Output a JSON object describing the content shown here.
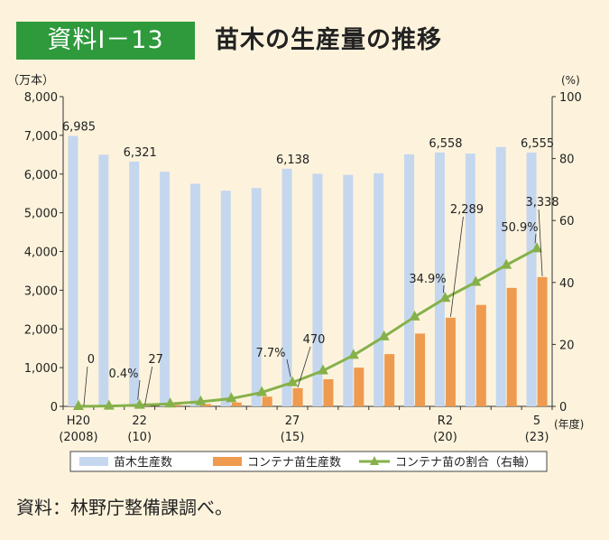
{
  "header": {
    "badge": "資料Ⅰ－13",
    "title": "苗木の生産量の推移"
  },
  "source_note": "資料：林野庁整備課調べ。",
  "colors": {
    "badge_bg": "#2e9a3c",
    "seedling_bar": "#c5d7ee",
    "container_bar": "#ee9a4f",
    "ratio_line": "#86b14a",
    "background": "#fdf3dc"
  },
  "chart_data": {
    "type": "bar",
    "left_axis_unit": "（万本）",
    "right_axis_unit": "(%)",
    "x_axis_unit": "(年度)",
    "left_ylim": [
      0,
      8000
    ],
    "right_ylim": [
      0,
      100
    ],
    "left_ticks": [
      "0",
      "1,000",
      "2,000",
      "3,000",
      "4,000",
      "5,000",
      "6,000",
      "7,000",
      "8,000"
    ],
    "right_ticks": [
      "0",
      "20",
      "40",
      "60",
      "80",
      "100"
    ],
    "x_labels": [
      {
        "index": 0,
        "line1": "H20",
        "line2": "(2008)"
      },
      {
        "index": 2,
        "line1": "22",
        "line2": "(10)"
      },
      {
        "index": 7,
        "line1": "27",
        "line2": "(15)"
      },
      {
        "index": 12,
        "line1": "R2",
        "line2": "(20)"
      },
      {
        "index": 15,
        "line1": "5",
        "line2": "(23)"
      }
    ],
    "series": [
      {
        "name": "苗木生産数",
        "type": "bar",
        "values": [
          6985,
          6500,
          6321,
          6060,
          5750,
          5570,
          5640,
          6138,
          6010,
          5980,
          6020,
          6510,
          6558,
          6530,
          6700,
          6555
        ]
      },
      {
        "name": "コンテナ苗生産数",
        "type": "bar",
        "values": [
          0,
          5,
          27,
          40,
          60,
          100,
          250,
          470,
          700,
          1000,
          1350,
          1880,
          2289,
          2620,
          3060,
          3338
        ]
      },
      {
        "name": "コンテナ苗の割合（右軸）",
        "type": "line",
        "values": [
          0,
          0.1,
          0.4,
          0.8,
          1.5,
          2.5,
          4.5,
          7.7,
          11.5,
          16.5,
          22.5,
          28.9,
          34.9,
          40.1,
          45.6,
          50.9
        ]
      }
    ],
    "annotations": {
      "seedling": [
        {
          "index": 0,
          "text": "6,985"
        },
        {
          "index": 2,
          "text": "6,321"
        },
        {
          "index": 7,
          "text": "6,138"
        },
        {
          "index": 12,
          "text": "6,558"
        },
        {
          "index": 15,
          "text": "6,555"
        }
      ],
      "container": [
        {
          "index": 0,
          "text": "0"
        },
        {
          "index": 2,
          "text": "27"
        },
        {
          "index": 7,
          "text": "470"
        },
        {
          "index": 12,
          "text": "2,289"
        },
        {
          "index": 15,
          "text": "3,338"
        }
      ],
      "ratio": [
        {
          "index": 2,
          "text": "0.4%"
        },
        {
          "index": 7,
          "text": "7.7%"
        },
        {
          "index": 12,
          "text": "34.9%"
        },
        {
          "index": 15,
          "text": "50.9%"
        }
      ]
    }
  }
}
